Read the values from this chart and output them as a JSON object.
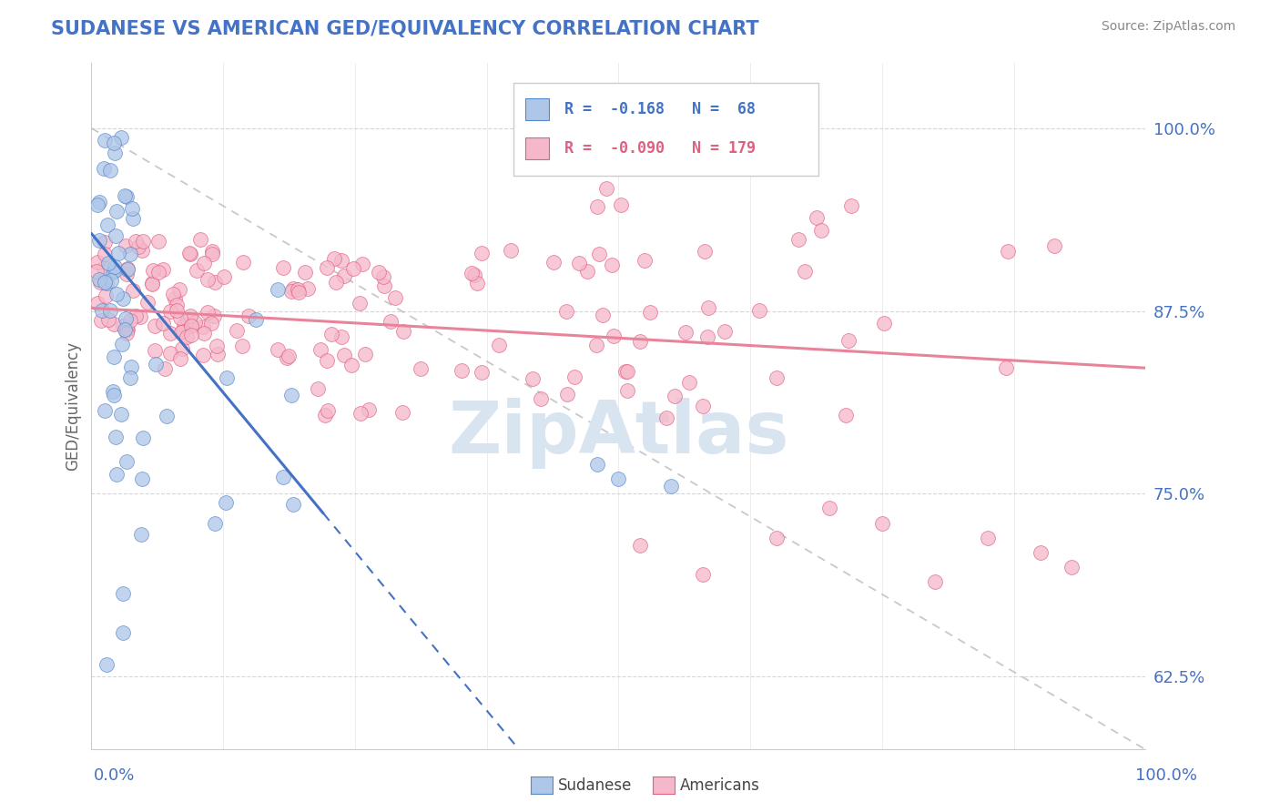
{
  "title": "SUDANESE VS AMERICAN GED/EQUIVALENCY CORRELATION CHART",
  "source": "Source: ZipAtlas.com",
  "ylabel_label": "GED/Equivalency",
  "yaxis_ticks": [
    62.5,
    75.0,
    87.5,
    100.0
  ],
  "yaxis_tick_labels": [
    "62.5%",
    "75.0%",
    "87.5%",
    "100.0%"
  ],
  "xmin": 0.0,
  "xmax": 1.0,
  "ymin": 0.575,
  "ymax": 1.045,
  "sudanese_R": -0.168,
  "sudanese_N": 68,
  "americans_R": -0.09,
  "americans_N": 179,
  "sudanese_color": "#aec6e8",
  "sudanese_edge": "#5588cc",
  "americans_color": "#f5b8ca",
  "americans_edge": "#e06080",
  "sudanese_line_color": "#4472c4",
  "americans_line_color": "#e8849a",
  "diagonal_line_color": "#bbbbbb",
  "legend_box_color_sudanese": "#aec6e8",
  "legend_box_color_americans": "#f5b8ca",
  "legend_border_sudanese": "#5588cc",
  "legend_border_americans": "#e06080",
  "watermark_text": "ZipAtlas",
  "watermark_color": "#d8e4f0",
  "background_color": "#ffffff",
  "title_color": "#4472c4",
  "axis_label_color": "#4472c4",
  "grid_color": "#cccccc",
  "tick_label_color": "#888888"
}
